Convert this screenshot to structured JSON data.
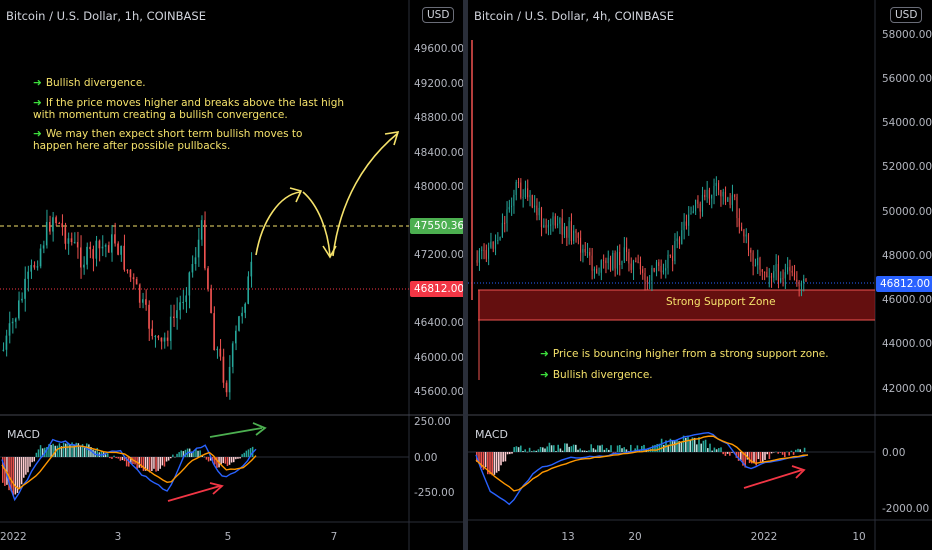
{
  "left": {
    "title": "Bitcoin / U.S. Dollar, 1h, COINBASE",
    "currency_badge": "USD",
    "price_ticks": [
      "49600.00",
      "49200.00",
      "48800.00",
      "48400.00",
      "48000.00",
      "47200.00",
      "46400.00",
      "46000.00",
      "45600.00"
    ],
    "resistance_tag": "47550.36",
    "current_tag": "46812.00",
    "macd_label": "MACD",
    "macd_ticks": [
      "250.00",
      "0.00",
      "-250.00"
    ],
    "time_ticks": [
      "2022",
      "3",
      "5",
      "7"
    ],
    "notes": [
      "Bullish divergence.",
      "If the price moves higher and breaks above the last high with momentum creating a bullish convergence.",
      "We may then expect short term bullish moves to happen here after possible pullbacks."
    ],
    "colors": {
      "up": "#26a69a",
      "down": "#ef5350",
      "resistance": "#f5e26b",
      "current": "#f23645",
      "resistance_tag": "#4caf50"
    }
  },
  "right": {
    "title": "Bitcoin / U.S. Dollar, 4h, COINBASE",
    "currency_badge": "USD",
    "price_ticks": [
      "58000.00",
      "56000.00",
      "54000.00",
      "52000.00",
      "50000.00",
      "48000.00",
      "46000.00",
      "44000.00",
      "42000.00"
    ],
    "current_tag": "46812.00",
    "zone_label": "Strong Support Zone",
    "macd_label": "MACD",
    "macd_ticks": [
      "0.00",
      "-2000.00"
    ],
    "time_ticks": [
      "13",
      "20",
      "2022",
      "10"
    ],
    "notes": [
      "Price is bouncing higher from a strong support zone.",
      "Bullish divergence."
    ],
    "colors": {
      "zone": "#b71c1c",
      "current": "#2962ff"
    }
  }
}
